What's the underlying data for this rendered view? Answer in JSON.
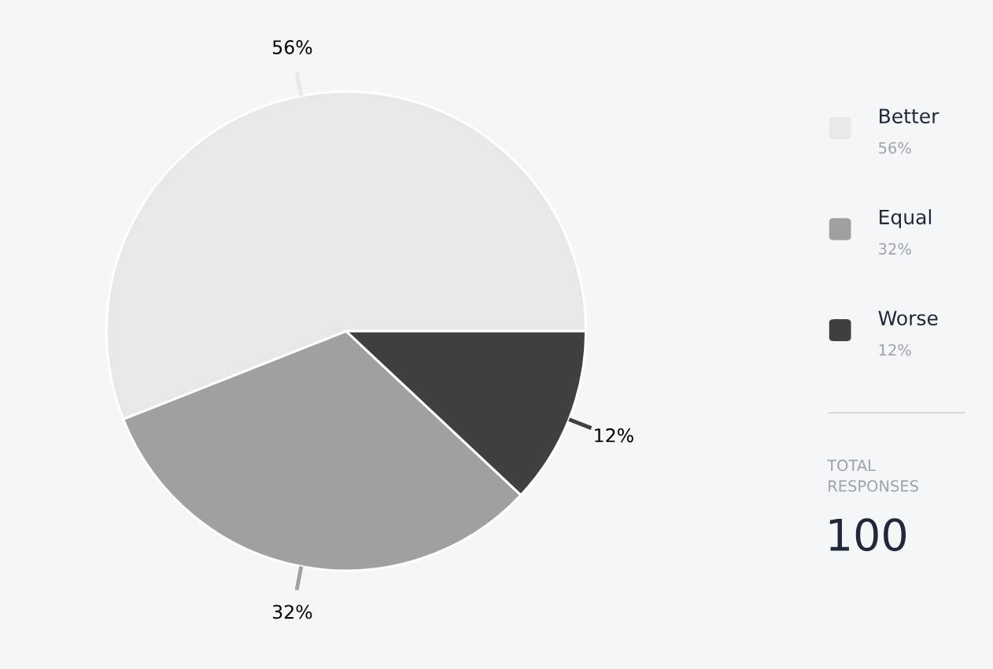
{
  "chart_data": {
    "type": "pie",
    "categories": [
      "Better",
      "Equal",
      "Worse"
    ],
    "values": [
      56,
      32,
      12
    ],
    "colors": [
      "#e8e8e8",
      "#a0a0a0",
      "#404040"
    ],
    "value_labels": [
      "56%",
      "32%",
      "12%"
    ],
    "legend": "right",
    "annotations": [
      "TOTAL RESPONSES",
      "100"
    ]
  }
}
